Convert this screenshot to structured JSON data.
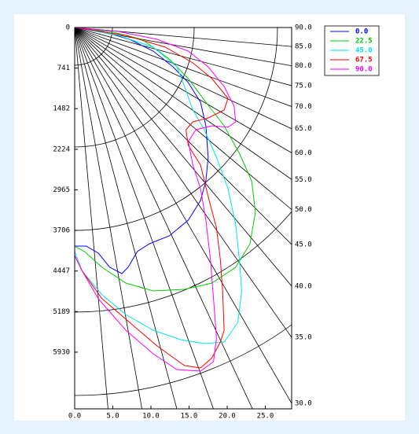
{
  "chart_data": {
    "type": "polar-photometric",
    "y_inverted": true,
    "xlim": [
      0,
      28.45
    ],
    "ylim": [
      0,
      6965
    ],
    "xticks": [
      {
        "value": 0,
        "label": "0.0"
      },
      {
        "value": 5,
        "label": "5.0"
      },
      {
        "value": 10,
        "label": "10.0"
      },
      {
        "value": 15,
        "label": "15.0"
      },
      {
        "value": 20,
        "label": "20.0"
      },
      {
        "value": 25,
        "label": "25.0"
      }
    ],
    "yticks": [
      0,
      741,
      1482,
      2224,
      2965,
      3706,
      4447,
      5189,
      5930
    ],
    "angle_ticks": [
      {
        "value": 90,
        "label": "90.0"
      },
      {
        "value": 85,
        "label": "85.0"
      },
      {
        "value": 80,
        "label": "80.0"
      },
      {
        "value": 75,
        "label": "75.0"
      },
      {
        "value": 70,
        "label": "70.0"
      },
      {
        "value": 65,
        "label": "65.0"
      },
      {
        "value": 60,
        "label": "60.0"
      },
      {
        "value": 55,
        "label": "55.0"
      },
      {
        "value": 50,
        "label": "50.0"
      },
      {
        "value": 45,
        "label": "45.0"
      },
      {
        "value": 40,
        "label": "40.0"
      },
      {
        "value": 35,
        "label": "35.0"
      },
      {
        "value": 30,
        "label": "30.0"
      }
    ],
    "series": [
      {
        "name": "0.0",
        "color": "#0000ff",
        "x": [
          0,
          3.6,
          7.2,
          10.3,
          12.9,
          14.9,
          16.5,
          17.2,
          17.5,
          17.2,
          16.5,
          14.9,
          12.4,
          9.8,
          8.2,
          7.0,
          6.2,
          4.6,
          3.1,
          1.5,
          0
        ],
        "values": [
          0,
          72,
          215,
          431,
          718,
          1005,
          1364,
          1795,
          2369,
          2800,
          3159,
          3518,
          3805,
          3949,
          4093,
          4380,
          4495,
          4380,
          4121,
          3992,
          3992
        ]
      },
      {
        "name": "22.5",
        "color": "#00cc00",
        "x": [
          0,
          4.6,
          8.8,
          12.4,
          14.9,
          17.2,
          19.6,
          21.6,
          23.2,
          23.7,
          23.0,
          21.1,
          18.0,
          14.4,
          10.3,
          6.7,
          3.6,
          1.3,
          0
        ],
        "values": [
          0,
          72,
          215,
          574,
          933,
          1364,
          1795,
          2298,
          2800,
          3375,
          3949,
          4380,
          4667,
          4782,
          4811,
          4667,
          4380,
          4093,
          3992
        ]
      },
      {
        "name": "45.0",
        "color": "#00e5e5",
        "x": [
          0,
          5.7,
          10.3,
          13.4,
          14.4,
          15.5,
          17.0,
          18.6,
          20.1,
          21.1,
          21.6,
          21.9,
          21.4,
          19.6,
          17.0,
          13.9,
          10.3,
          6.7,
          3.6,
          1.0,
          0
        ],
        "values": [
          0,
          144,
          359,
          718,
          1077,
          1508,
          1867,
          2369,
          2944,
          3590,
          4236,
          4811,
          5386,
          5745,
          5773,
          5701,
          5529,
          5242,
          4882,
          4452,
          4093
        ]
      },
      {
        "name": "67.5",
        "color": "#ff0000",
        "x": [
          0,
          6.7,
          11.9,
          15.5,
          18.0,
          20.1,
          19.6,
          17.5,
          15.5,
          14.6,
          14.9,
          16.5,
          17.5,
          18.6,
          19.1,
          19.4,
          19.6,
          19.1,
          18.0,
          16.5,
          14.4,
          10.8,
          7.2,
          3.6,
          1.0,
          0
        ],
        "values": [
          0,
          144,
          359,
          646,
          933,
          1292,
          1508,
          1651,
          1723,
          1867,
          2154,
          2513,
          3088,
          3662,
          4236,
          4811,
          5529,
          5745,
          6031,
          6218,
          6175,
          5816,
          5386,
          4954,
          4452,
          4164
        ]
      },
      {
        "name": "90.0",
        "color": "#ff00ff",
        "x": [
          0,
          5.7,
          10.8,
          14.9,
          17.5,
          19.6,
          20.9,
          21.1,
          20.1,
          18.0,
          15.9,
          14.9,
          15.5,
          16.5,
          17.2,
          17.8,
          18.2,
          18.6,
          18.2,
          16.5,
          13.4,
          10.3,
          6.7,
          3.1,
          1.0,
          0
        ],
        "values": [
          0,
          72,
          215,
          431,
          718,
          1077,
          1436,
          1723,
          1823,
          1795,
          1867,
          2082,
          2513,
          2944,
          3518,
          4236,
          4954,
          5673,
          6103,
          6275,
          6247,
          5960,
          5529,
          4954,
          4452,
          4164
        ]
      }
    ]
  }
}
